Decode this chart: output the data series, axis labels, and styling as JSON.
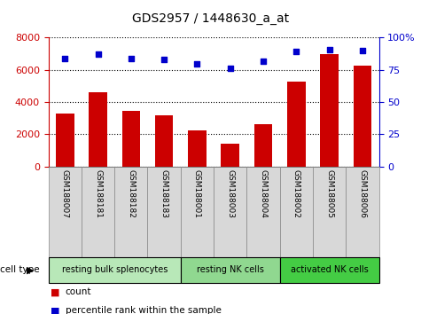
{
  "title": "GDS2957 / 1448630_a_at",
  "samples": [
    "GSM188007",
    "GSM188181",
    "GSM188182",
    "GSM188183",
    "GSM188001",
    "GSM188003",
    "GSM188004",
    "GSM188002",
    "GSM188005",
    "GSM188006"
  ],
  "counts": [
    3280,
    4620,
    3460,
    3160,
    2230,
    1430,
    2600,
    5270,
    7000,
    6280
  ],
  "percentiles": [
    84,
    87,
    84,
    83,
    80,
    76,
    82,
    89,
    91,
    90
  ],
  "cell_types": [
    {
      "label": "resting bulk splenocytes",
      "start": 0,
      "end": 4,
      "color": "#b8e8b8"
    },
    {
      "label": "resting NK cells",
      "start": 4,
      "end": 7,
      "color": "#90d890"
    },
    {
      "label": "activated NK cells",
      "start": 7,
      "end": 10,
      "color": "#44cc44"
    }
  ],
  "bar_color": "#cc0000",
  "dot_color": "#0000cc",
  "ylim_left": [
    0,
    8000
  ],
  "ylim_right": [
    0,
    100
  ],
  "yticks_left": [
    0,
    2000,
    4000,
    6000,
    8000
  ],
  "yticks_right": [
    0,
    25,
    50,
    75,
    100
  ],
  "tick_label_color_left": "#cc0000",
  "tick_label_color_right": "#0000cc",
  "legend_count_label": "count",
  "legend_pct_label": "percentile rank within the sample",
  "cell_type_label": "cell type",
  "figsize": [
    4.75,
    3.54
  ],
  "dpi": 100
}
